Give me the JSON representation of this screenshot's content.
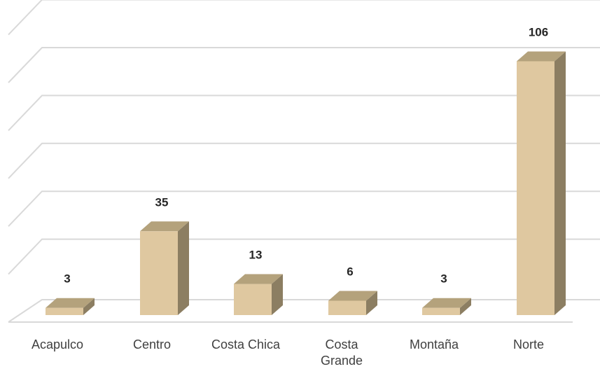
{
  "chart_data": {
    "type": "bar",
    "style": "3d-column",
    "categories": [
      "Acapulco",
      "Centro",
      "Costa Chica",
      "Costa Grande",
      "Montaña",
      "Norte"
    ],
    "values": [
      3,
      35,
      13,
      6,
      3,
      106
    ],
    "ylim": [
      0,
      120
    ],
    "grid": true,
    "legend": "none",
    "axis_tick_labels_visible": false,
    "colors": {
      "front": "#dfc8a0",
      "side": "#8c7e62",
      "top": "#b4a27c",
      "grid": "#d9d9d9",
      "label": "#404040",
      "value_label": "#262626"
    }
  }
}
